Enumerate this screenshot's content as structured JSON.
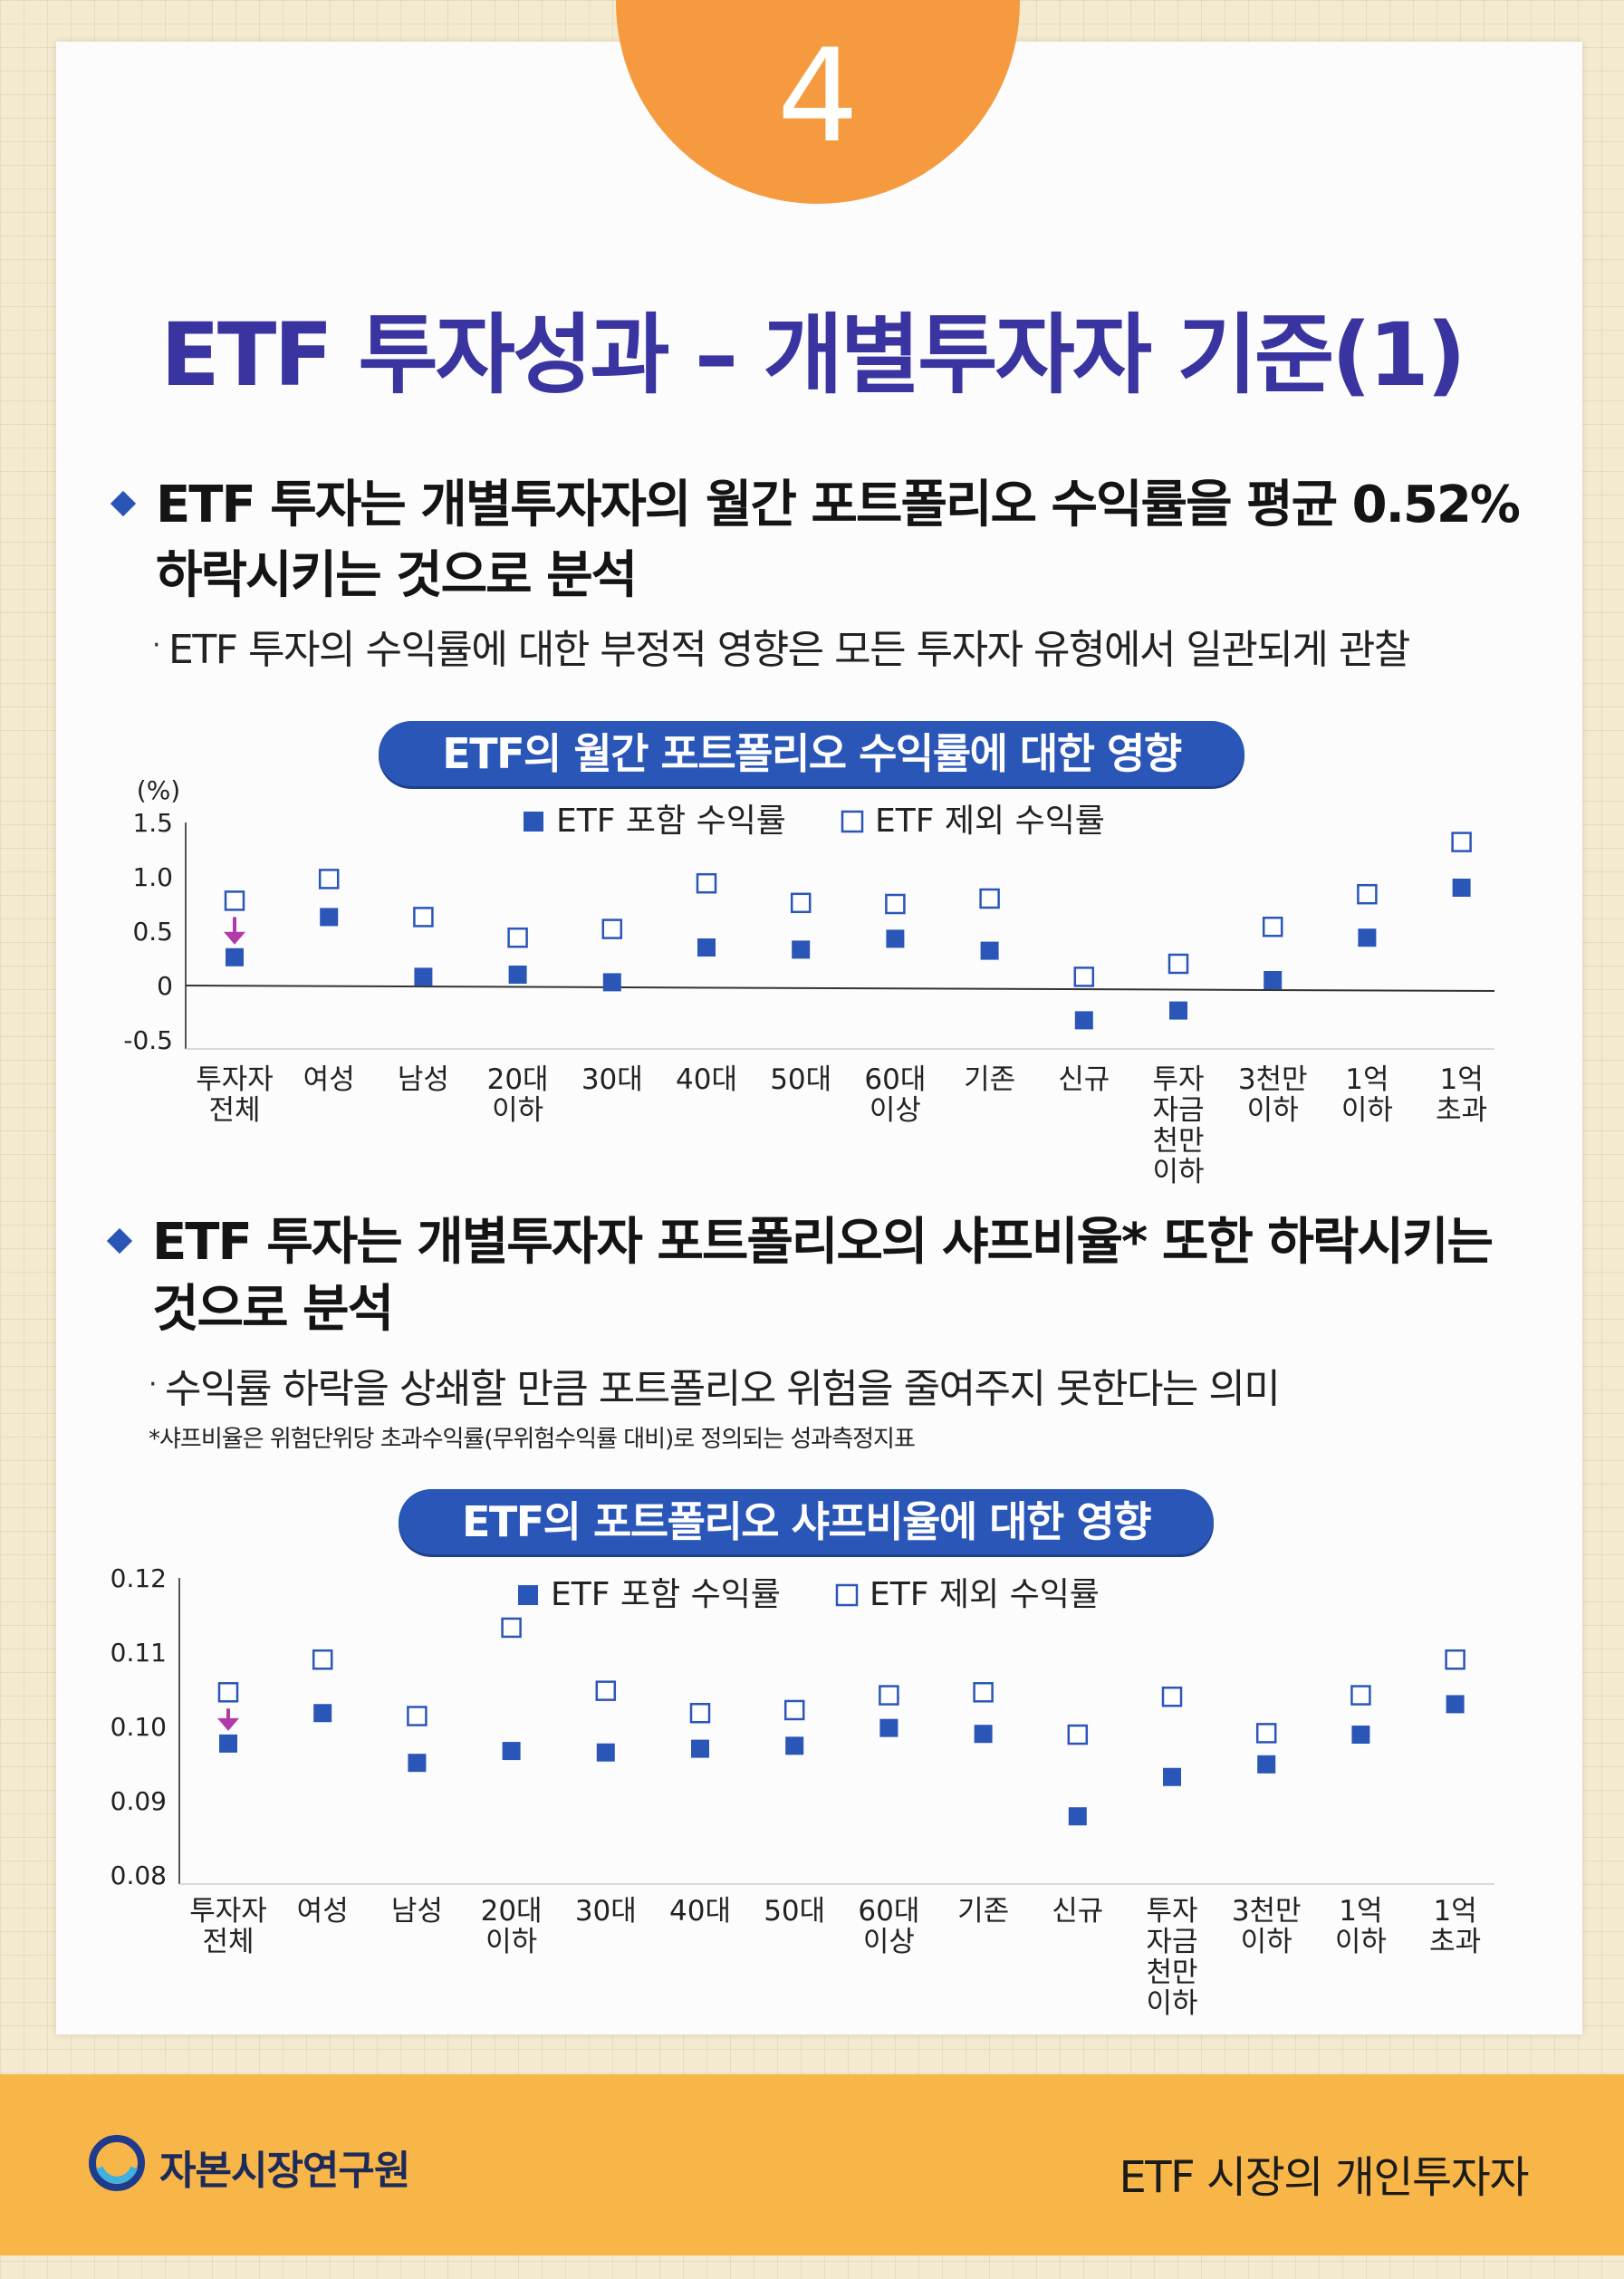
{
  "badge": {
    "number": "4"
  },
  "title": "ETF 투자성과 – 개별투자자 기준(1)",
  "section1": {
    "bullet_line1": "ETF 투자는 개별투자자의 월간 포트폴리오 수익률을 평균 0.52%",
    "bullet_line2": "하락시키는 것으로 분석",
    "sub": "ETF 투자의 수익률에 대한 부정적 영향은 모든 투자자 유형에서 일관되게 관찰"
  },
  "section2": {
    "bullet_line1": "ETF 투자는 개별투자자 포트폴리오의 샤프비율* 또한 하락시키는",
    "bullet_line2": "것으로 분석",
    "sub": "수익률 하락을 상쇄할 만큼 포트폴리오 위험을 줄여주지 못한다는 의미",
    "footnote": "*샤프비율은 위험단위당 초과수익률(무위험수익률 대비)로 정의되는 성과측정지표"
  },
  "colors": {
    "accent": "#2a56b8",
    "title": "#3a34a0",
    "badge": "#f59a3f",
    "footer": "#f7b647",
    "arrow": "#b23aa8"
  },
  "chart_data": [
    {
      "type": "scatter",
      "title": "ETF의 월간 포트폴리오 수익률에 대한 영향",
      "ylabel": "(%)",
      "ylim": [
        -0.5,
        1.5
      ],
      "yticks": [
        1.5,
        1.0,
        0.5,
        0,
        -0.5
      ],
      "ytick_labels": [
        "1.5",
        "1.0",
        "0.5",
        "0",
        "-0.5"
      ],
      "legend_position": "top-center",
      "categories": [
        [
          "투자자",
          "전체"
        ],
        [
          "여성"
        ],
        [
          "남성"
        ],
        [
          "20대",
          "이하"
        ],
        [
          "30대"
        ],
        [
          "40대"
        ],
        [
          "50대"
        ],
        [
          "60대",
          "이상"
        ],
        [
          "기존"
        ],
        [
          "신규"
        ],
        [
          "투자",
          "자금",
          "천만",
          "이하"
        ],
        [
          "3천만",
          "이하"
        ],
        [
          "1억",
          "이하"
        ],
        [
          "1억",
          "초과"
        ]
      ],
      "series": [
        {
          "name": "ETF 포함 수익률",
          "marker": "filled-square",
          "values": [
            0.26,
            0.63,
            0.08,
            0.1,
            0.03,
            0.35,
            0.33,
            0.43,
            0.32,
            -0.32,
            -0.23,
            0.05,
            0.44,
            0.9
          ]
        },
        {
          "name": "ETF 제외 수익률",
          "marker": "open-square",
          "values": [
            0.78,
            0.98,
            0.63,
            0.44,
            0.52,
            0.94,
            0.76,
            0.75,
            0.8,
            0.08,
            0.2,
            0.54,
            0.84,
            1.32
          ]
        }
      ],
      "annotation": {
        "type": "arrow",
        "category_index": 0
      }
    },
    {
      "type": "scatter",
      "title": "ETF의 포트폴리오 샤프비율에 대한 영향",
      "ylim": [
        0.08,
        0.12
      ],
      "yticks": [
        0.12,
        0.11,
        0.1,
        0.09,
        0.08
      ],
      "ytick_labels": [
        "0.12",
        "0.11",
        "0.10",
        "0.09",
        "0.08"
      ],
      "legend_position": "top-center",
      "categories": [
        [
          "투자자",
          "전체"
        ],
        [
          "여성"
        ],
        [
          "남성"
        ],
        [
          "20대",
          "이하"
        ],
        [
          "30대"
        ],
        [
          "40대"
        ],
        [
          "50대"
        ],
        [
          "60대",
          "이상"
        ],
        [
          "기존"
        ],
        [
          "신규"
        ],
        [
          "투자",
          "자금",
          "천만",
          "이하"
        ],
        [
          "3천만",
          "이하"
        ],
        [
          "1억",
          "이하"
        ],
        [
          "1억",
          "초과"
        ]
      ],
      "series": [
        {
          "name": "ETF 포함 수익률",
          "marker": "filled-square",
          "values": [
            0.0977,
            0.1018,
            0.0951,
            0.0967,
            0.0965,
            0.097,
            0.0974,
            0.0998,
            0.099,
            0.0879,
            0.0932,
            0.0949,
            0.0989,
            0.103
          ]
        },
        {
          "name": "ETF 제외 수익률",
          "marker": "open-square",
          "values": [
            0.1046,
            0.109,
            0.1014,
            0.1133,
            0.1048,
            0.1018,
            0.1022,
            0.1042,
            0.1046,
            0.0989,
            0.104,
            0.0991,
            0.1042,
            0.109
          ]
        }
      ],
      "annotation": {
        "type": "arrow",
        "category_index": 0
      }
    }
  ],
  "footer": {
    "org": "자본시장연구원",
    "right": "ETF 시장의 개인투자자"
  }
}
